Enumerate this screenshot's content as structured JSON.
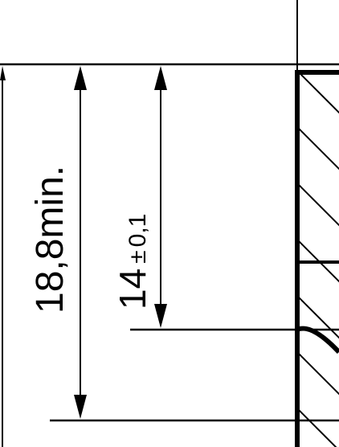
{
  "diagram": {
    "dimensions": [
      {
        "value": "18,8",
        "qualifier": "min."
      },
      {
        "value": "14",
        "tolerance": "±",
        "tolerance_value": "0,1"
      }
    ],
    "colors": {
      "line": "#000000",
      "background": "#ffffff"
    }
  }
}
